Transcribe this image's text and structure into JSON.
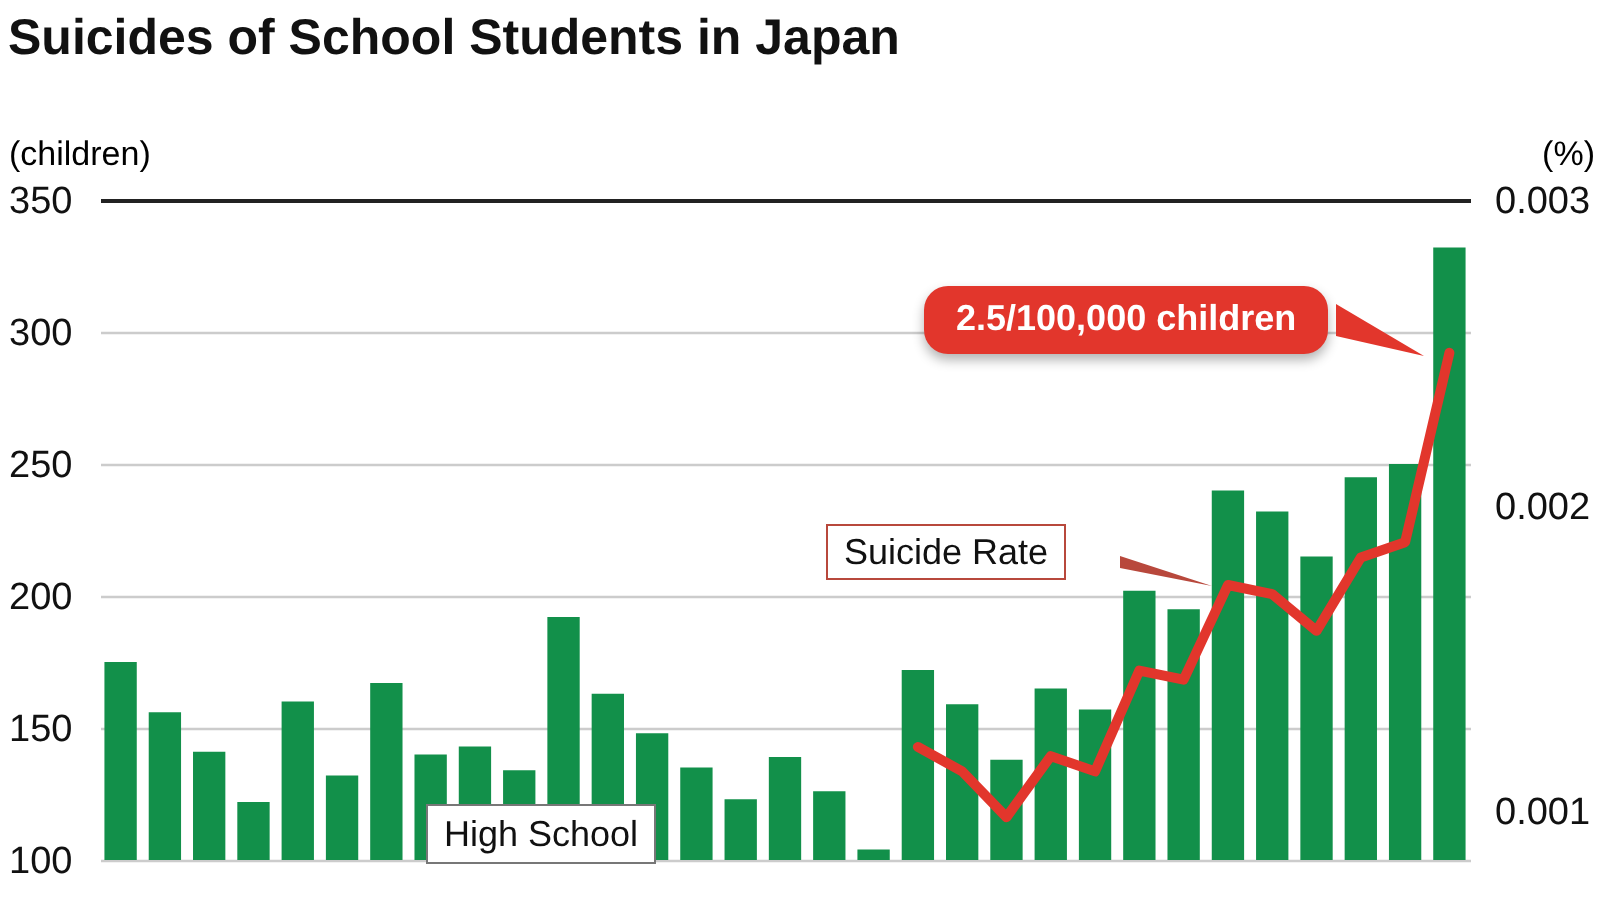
{
  "chart_data": {
    "type": "bar",
    "title": "Suicides of School Students in Japan",
    "ylabel": "(children)",
    "y2label": "(%)",
    "categories": [
      null,
      null,
      null,
      null,
      null,
      null,
      null,
      null,
      null,
      null,
      null,
      null,
      null,
      null,
      null,
      null,
      null,
      null,
      null,
      null,
      null,
      null,
      null,
      null,
      null,
      null,
      null,
      null,
      null,
      null,
      null
    ],
    "series": [
      {
        "color": "#12904a",
        "values": [
          175,
          156,
          141,
          122,
          160,
          132,
          167,
          140,
          143,
          134,
          192,
          163,
          148,
          135,
          123,
          139,
          126,
          104,
          172,
          159,
          138,
          165,
          157,
          202,
          195,
          240,
          232,
          215,
          245,
          250,
          332
        ]
      },
      {
        "type": "line",
        "axis": "y2",
        "color": "#e2362c",
        "values": [
          null,
          null,
          null,
          null,
          null,
          null,
          null,
          null,
          null,
          null,
          null,
          null,
          null,
          null,
          null,
          null,
          null,
          null,
          0.00121,
          0.00113,
          0.00098,
          0.00118,
          0.00113,
          0.00146,
          0.00143,
          0.00174,
          0.00171,
          0.00159,
          0.00183,
          0.00188,
          0.0025
        ]
      }
    ],
    "ylim": [
      100,
      350
    ],
    "yticks": [
      100,
      150,
      200,
      250,
      300,
      350
    ],
    "y2lim": [
      0.00084,
      0.003
    ],
    "y2ticks": [
      0.001,
      0.002,
      0.003
    ],
    "grid": "y",
    "annotations": [
      "2.5/100,000 children",
      "Suicide Rate",
      "High School"
    ]
  }
}
